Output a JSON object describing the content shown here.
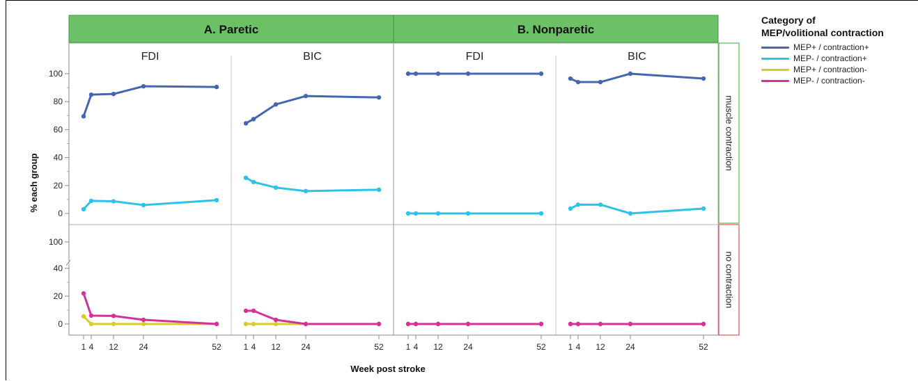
{
  "chart_data": {
    "type": "line",
    "panel_groups": [
      {
        "id": "paretic",
        "label": "A.  Paretic"
      },
      {
        "id": "nonparetic",
        "label": "B.  Nonparetic"
      }
    ],
    "muscles": [
      "FDI",
      "BIC"
    ],
    "rows": [
      {
        "id": "contraction",
        "label": "muscle contraction",
        "border_color": "#3aa53a",
        "yticks": [
          "0",
          "20",
          "40",
          "60",
          "80",
          "100"
        ]
      },
      {
        "id": "no_contraction",
        "label": "no  contraction",
        "border_color": "#d9323a",
        "yticks": [
          "0",
          "20",
          "40",
          "100"
        ]
      }
    ],
    "x_values": [
      1,
      4,
      12,
      24,
      52
    ],
    "x_ticks": [
      "1",
      "4",
      "12",
      "24",
      "52"
    ],
    "xlabel": "Week post stroke",
    "ylabel": "% each group",
    "legend": {
      "title": "Category of\nMEP/volitional contraction",
      "entries": [
        {
          "name": "MEP+ / contraction+",
          "color": "#4466b0"
        },
        {
          "name": "MEP- / contraction+",
          "color": "#2cc2ea"
        },
        {
          "name": "MEP+ / contraction-",
          "color": "#d6cc2c"
        },
        {
          "name": "MEP- / contraction-",
          "color": "#d6319a"
        }
      ]
    },
    "panels": [
      {
        "row": "contraction",
        "group": "paretic",
        "muscle": "FDI",
        "series": [
          {
            "name": "MEP+ / contraction+",
            "values": [
              69.5,
              85,
              85.5,
              91,
              90.5
            ]
          },
          {
            "name": "MEP- / contraction+",
            "values": [
              3,
              9,
              8.7,
              6,
              9.5
            ]
          }
        ]
      },
      {
        "row": "contraction",
        "group": "paretic",
        "muscle": "BIC",
        "series": [
          {
            "name": "MEP+ / contraction+",
            "values": [
              64.5,
              67.5,
              78,
              84,
              83
            ]
          },
          {
            "name": "MEP- / contraction+",
            "values": [
              25.5,
              22.5,
              18.5,
              16,
              17
            ]
          }
        ]
      },
      {
        "row": "contraction",
        "group": "nonparetic",
        "muscle": "FDI",
        "series": [
          {
            "name": "MEP+ / contraction+",
            "values": [
              100,
              100,
              100,
              100,
              100
            ]
          },
          {
            "name": "MEP- / contraction+",
            "values": [
              0,
              0,
              0,
              0,
              0
            ]
          }
        ]
      },
      {
        "row": "contraction",
        "group": "nonparetic",
        "muscle": "BIC",
        "series": [
          {
            "name": "MEP+ / contraction+",
            "values": [
              96.5,
              94,
              94,
              100,
              96.5
            ]
          },
          {
            "name": "MEP- / contraction+",
            "values": [
              3.5,
              6.3,
              6.3,
              0,
              3.5
            ]
          }
        ]
      },
      {
        "row": "no_contraction",
        "group": "paretic",
        "muscle": "FDI",
        "series": [
          {
            "name": "MEP+ / contraction-",
            "values": [
              5.5,
              0,
              0,
              0,
              0
            ]
          },
          {
            "name": "MEP- / contraction-",
            "values": [
              22,
              6,
              5.8,
              3,
              0
            ]
          }
        ]
      },
      {
        "row": "no_contraction",
        "group": "paretic",
        "muscle": "BIC",
        "series": [
          {
            "name": "MEP+ / contraction-",
            "values": [
              0,
              0,
              0,
              0,
              0
            ]
          },
          {
            "name": "MEP- / contraction-",
            "values": [
              9.5,
              9.5,
              3,
              0,
              0
            ]
          }
        ]
      },
      {
        "row": "no_contraction",
        "group": "nonparetic",
        "muscle": "FDI",
        "series": [
          {
            "name": "MEP+ / contraction-",
            "values": [
              0,
              0,
              0,
              0,
              0
            ]
          },
          {
            "name": "MEP- / contraction-",
            "values": [
              0,
              0,
              0,
              0,
              0
            ]
          }
        ]
      },
      {
        "row": "no_contraction",
        "group": "nonparetic",
        "muscle": "BIC",
        "series": [
          {
            "name": "MEP+ / contraction-",
            "values": [
              0,
              0,
              0,
              0,
              0
            ]
          },
          {
            "name": "MEP- / contraction-",
            "values": [
              0,
              0,
              0,
              0,
              0
            ]
          }
        ]
      }
    ],
    "colors": {
      "group_header_fill": "#6cc066",
      "group_header_border": "#3b9a3b",
      "divider": "#c8c8c8"
    }
  }
}
